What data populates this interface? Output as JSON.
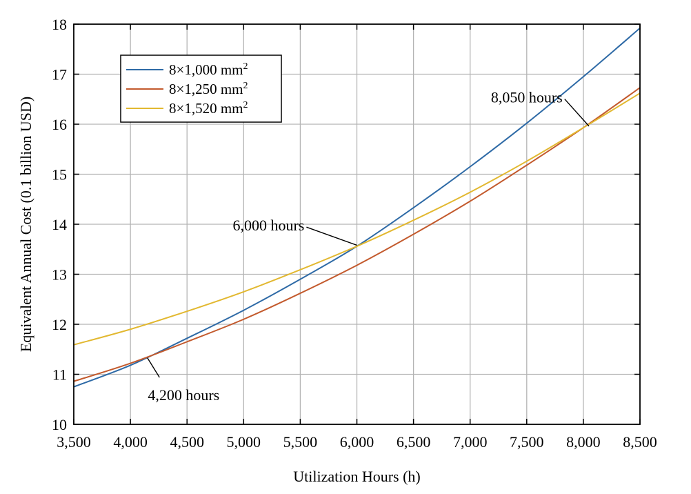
{
  "chart_data": {
    "type": "line",
    "title": "",
    "xlabel": "Utilization Hours (h)",
    "ylabel": "Equivalent Annual Cost (0.1 billion USD)",
    "xlim": [
      3500,
      8500
    ],
    "ylim": [
      10,
      18
    ],
    "xticks": [
      3500,
      4000,
      4500,
      5000,
      5500,
      6000,
      6500,
      7000,
      7500,
      8000,
      8500
    ],
    "xtick_labels": [
      "3,500",
      "4,000",
      "4,500",
      "5,000",
      "5,500",
      "6,000",
      "6,500",
      "7,000",
      "7,500",
      "8,000",
      "8,500"
    ],
    "yticks": [
      10,
      11,
      12,
      13,
      14,
      15,
      16,
      17,
      18
    ],
    "ytick_labels": [
      "10",
      "11",
      "12",
      "13",
      "14",
      "15",
      "16",
      "17",
      "18"
    ],
    "grid": true,
    "legend_position": "top-left",
    "x": [
      3500,
      4000,
      4500,
      5000,
      5500,
      6000,
      6500,
      7000,
      7500,
      8000,
      8500
    ],
    "series": [
      {
        "name": "8×1,000 mm",
        "unit_exponent": "2",
        "color": "#2e6aa6",
        "values": [
          10.75,
          11.18,
          11.72,
          12.28,
          12.9,
          13.56,
          14.33,
          15.15,
          16.02,
          16.95,
          17.92
        ]
      },
      {
        "name": "8×1,250 mm",
        "unit_exponent": "2",
        "color": "#c35a2d",
        "values": [
          10.86,
          11.22,
          11.65,
          12.1,
          12.62,
          13.18,
          13.8,
          14.46,
          15.18,
          15.93,
          16.73
        ]
      },
      {
        "name": "8×1,520 mm",
        "unit_exponent": "2",
        "color": "#e2b830",
        "values": [
          11.59,
          11.9,
          12.26,
          12.65,
          13.09,
          13.56,
          14.08,
          14.64,
          15.26,
          15.93,
          16.62
        ]
      }
    ],
    "annotations": [
      {
        "text": "4,200 hours",
        "x": 4150,
        "y": 11.33,
        "label_x": 4470,
        "label_y": 10.58
      },
      {
        "text": "6,000 hours",
        "x": 6000,
        "y": 13.58,
        "label_x": 5220,
        "label_y": 13.97
      },
      {
        "text": "8,050 hours",
        "x": 8050,
        "y": 15.96,
        "label_x": 7500,
        "label_y": 16.53
      }
    ]
  }
}
